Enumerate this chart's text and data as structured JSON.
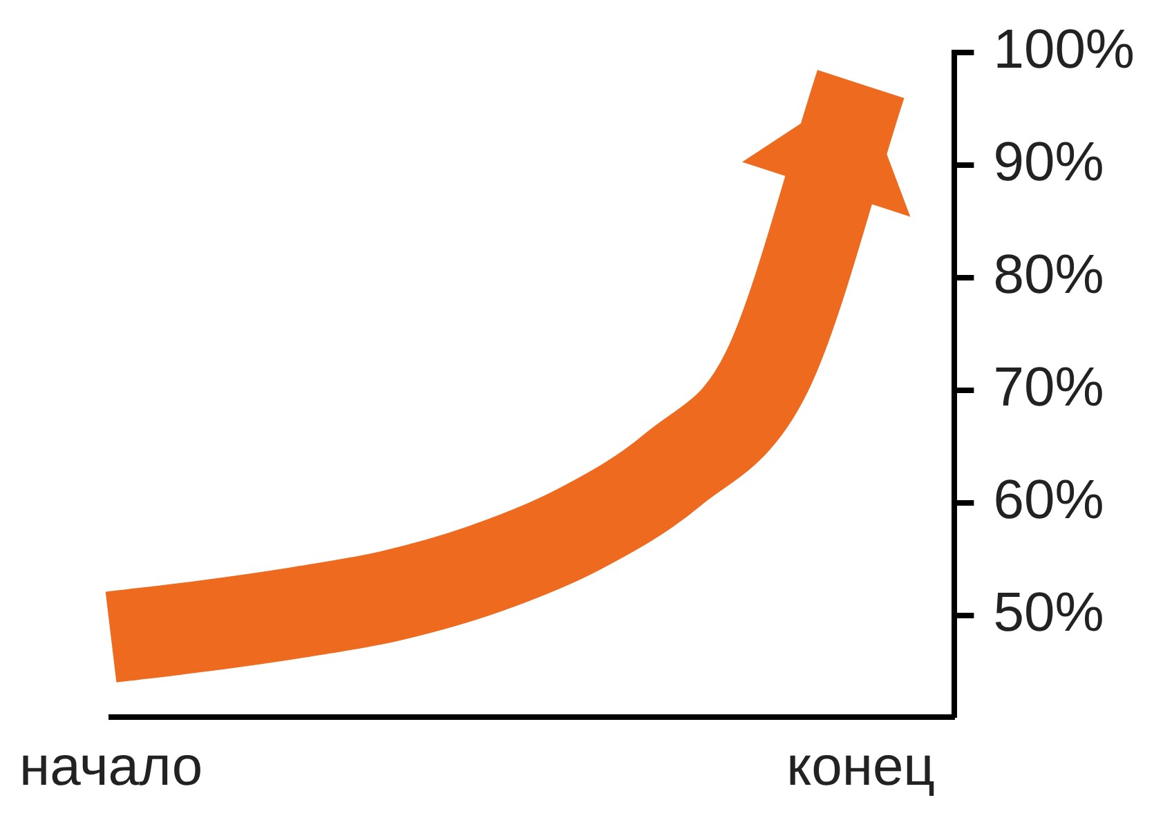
{
  "chart_data": {
    "type": "line",
    "categories": [
      "начало",
      null,
      null,
      null,
      null,
      null,
      null,
      null,
      "конец",
      null
    ],
    "ylim": [
      41,
      100
    ],
    "yticks": [
      {
        "value": 50,
        "label": "50%"
      },
      {
        "value": 60,
        "label": "60%"
      },
      {
        "value": 70,
        "label": "70%"
      },
      {
        "value": 80,
        "label": "80%"
      },
      {
        "value": 90,
        "label": "90%"
      },
      {
        "value": 100,
        "label": "100%"
      }
    ],
    "grid": false,
    "legend": false,
    "marker": "none",
    "line_style": "solid",
    "series": [
      {
        "color": "#ee6a1e",
        "values": [
          48.1,
          49.1,
          50.3,
          51.8,
          54.2,
          57.7,
          63.0,
          71.7,
          97.2,
          null
        ]
      }
    ]
  }
}
